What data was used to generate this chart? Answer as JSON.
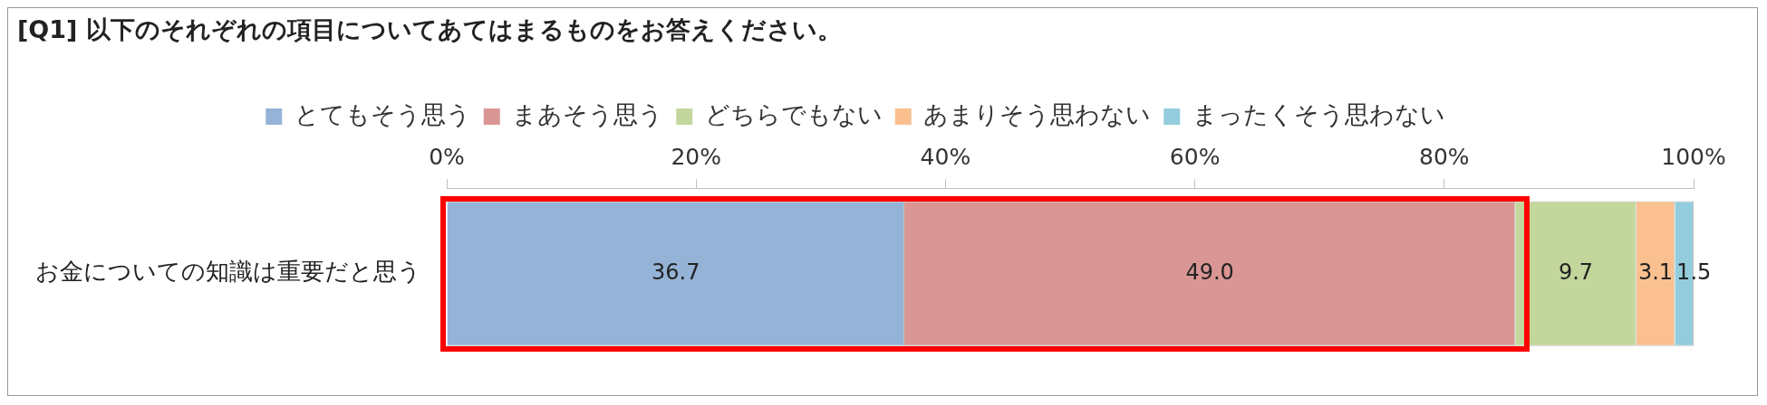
{
  "chart_data": {
    "type": "bar",
    "orientation": "horizontal",
    "stacked": true,
    "title": "[Q1] 以下のそれぞれの項目についてあてはまるものをお答えください。",
    "categories": [
      "お金についての知識は重要だと思う"
    ],
    "series": [
      {
        "name": "とてもそう思う",
        "color": "#95b3d7",
        "values": [
          36.7
        ],
        "value_labels": [
          "36.7"
        ]
      },
      {
        "name": "まあそう思う",
        "color": "#d99694",
        "values": [
          49.0
        ],
        "value_labels": [
          "49.0"
        ]
      },
      {
        "name": "どちらでもない",
        "color": "#c3d69b",
        "values": [
          9.7
        ],
        "value_labels": [
          "9.7"
        ]
      },
      {
        "name": "あまりそう思わない",
        "color": "#fac090",
        "values": [
          3.1
        ],
        "value_labels": [
          "3.1"
        ]
      },
      {
        "name": "まったくそう思わない",
        "color": "#93cddd",
        "values": [
          1.5
        ],
        "value_labels": [
          "1.5"
        ]
      }
    ],
    "xlim": [
      0,
      100
    ],
    "xticks": [
      {
        "value": 0,
        "label": "0%"
      },
      {
        "value": 20,
        "label": "20%"
      },
      {
        "value": 40,
        "label": "40%"
      },
      {
        "value": 60,
        "label": "60%"
      },
      {
        "value": 80,
        "label": "80%"
      },
      {
        "value": 100,
        "label": "100%"
      }
    ],
    "grid": false,
    "legend": "top"
  }
}
